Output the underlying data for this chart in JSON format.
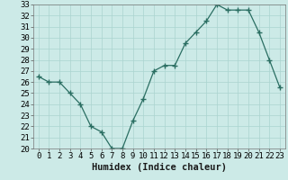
{
  "x": [
    0,
    1,
    2,
    3,
    4,
    5,
    6,
    7,
    8,
    9,
    10,
    11,
    12,
    13,
    14,
    15,
    16,
    17,
    18,
    19,
    20,
    21,
    22,
    23
  ],
  "y": [
    26.5,
    26,
    26,
    25,
    24,
    22,
    21.5,
    20,
    20,
    22.5,
    24.5,
    27,
    27.5,
    27.5,
    29.5,
    30.5,
    31.5,
    33,
    32.5,
    32.5,
    32.5,
    30.5,
    28,
    25.5
  ],
  "line_color": "#2a6e62",
  "marker": "+",
  "marker_size": 4,
  "marker_lw": 1.0,
  "xlabel": "Humidex (Indice chaleur)",
  "ylim": [
    20,
    33
  ],
  "xlim": [
    -0.5,
    23.5
  ],
  "yticks": [
    20,
    21,
    22,
    23,
    24,
    25,
    26,
    27,
    28,
    29,
    30,
    31,
    32,
    33
  ],
  "xticks": [
    0,
    1,
    2,
    3,
    4,
    5,
    6,
    7,
    8,
    9,
    10,
    11,
    12,
    13,
    14,
    15,
    16,
    17,
    18,
    19,
    20,
    21,
    22,
    23
  ],
  "bg_color": "#cceae7",
  "grid_color": "#aad4d0",
  "tick_fontsize": 6.5,
  "label_fontsize": 7.5
}
